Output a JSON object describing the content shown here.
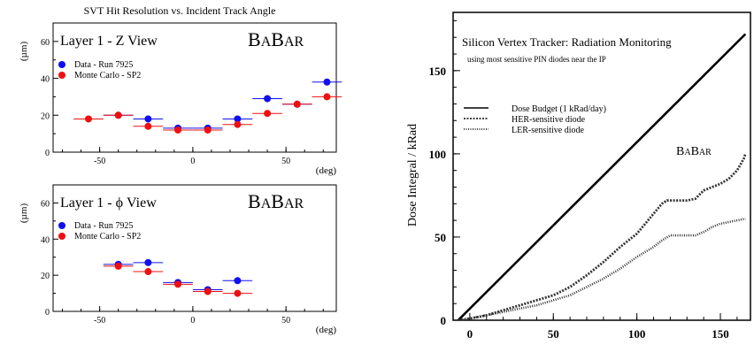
{
  "left_header": "SVT Hit Resolution vs. Incident Track Angle",
  "chart_data": [
    {
      "type": "scatter",
      "panel_title": "Layer 1 - Z View",
      "logo": "BABAR",
      "ylabel": "(µm)",
      "xlabel": "(deg)",
      "xlim": [
        -75,
        77
      ],
      "ylim": [
        0,
        70
      ],
      "x_ticks": [
        -50,
        0,
        50
      ],
      "y_ticks": [
        0,
        20,
        40,
        60
      ],
      "legend_placement": "top-left",
      "series": [
        {
          "name": "Data - Run 7925",
          "color": "#1010ee",
          "points": [
            {
              "x": -40,
              "y": 20,
              "xerr": 8
            },
            {
              "x": -24,
              "y": 18,
              "xerr": 8
            },
            {
              "x": -8,
              "y": 13,
              "xerr": 8
            },
            {
              "x": 8,
              "y": 13,
              "xerr": 8
            },
            {
              "x": 24,
              "y": 18,
              "xerr": 8
            },
            {
              "x": 40,
              "y": 29,
              "xerr": 8
            },
            {
              "x": 56,
              "y": 26,
              "xerr": 8
            },
            {
              "x": 72,
              "y": 38,
              "xerr": 8
            }
          ]
        },
        {
          "name": "Monte Carlo - SP2",
          "color": "#ee1010",
          "points": [
            {
              "x": -56,
              "y": 18,
              "xerr": 8
            },
            {
              "x": -40,
              "y": 20,
              "xerr": 8
            },
            {
              "x": -24,
              "y": 14,
              "xerr": 8
            },
            {
              "x": -8,
              "y": 12,
              "xerr": 8
            },
            {
              "x": 8,
              "y": 12,
              "xerr": 8
            },
            {
              "x": 24,
              "y": 15,
              "xerr": 8
            },
            {
              "x": 40,
              "y": 21,
              "xerr": 8
            },
            {
              "x": 56,
              "y": 26,
              "xerr": 8
            },
            {
              "x": 72,
              "y": 30,
              "xerr": 8
            }
          ]
        }
      ]
    },
    {
      "type": "scatter",
      "panel_title": "Layer 1 - ϕ View",
      "logo": "BABAR",
      "ylabel": "(µm)",
      "xlabel": "(deg)",
      "xlim": [
        -75,
        77
      ],
      "ylim": [
        0,
        70
      ],
      "x_ticks": [
        -50,
        0,
        50
      ],
      "y_ticks": [
        0,
        20,
        40,
        60
      ],
      "legend_placement": "top-left",
      "series": [
        {
          "name": "Data - Run 7925",
          "color": "#1010ee",
          "points": [
            {
              "x": -40,
              "y": 26,
              "xerr": 8
            },
            {
              "x": -24,
              "y": 27,
              "xerr": 8
            },
            {
              "x": -8,
              "y": 16,
              "xerr": 8
            },
            {
              "x": 8,
              "y": 12,
              "xerr": 8
            },
            {
              "x": 24,
              "y": 17,
              "xerr": 8
            }
          ]
        },
        {
          "name": "Monte Carlo - SP2",
          "color": "#ee1010",
          "points": [
            {
              "x": -40,
              "y": 25,
              "xerr": 8
            },
            {
              "x": -24,
              "y": 22,
              "xerr": 8
            },
            {
              "x": -8,
              "y": 15,
              "xerr": 8
            },
            {
              "x": 8,
              "y": 11,
              "xerr": 8
            },
            {
              "x": 24,
              "y": 10,
              "xerr": 8
            }
          ]
        }
      ]
    },
    {
      "type": "line",
      "title": "Silicon Vertex Tracker: Radiation Monitoring",
      "subtitle": "using most sensitive PIN diodes near the IP",
      "logo": "BABAR",
      "ylabel": "Dose Integral / kRad",
      "xlabel": "",
      "xlim": [
        -10,
        168
      ],
      "ylim": [
        0,
        185
      ],
      "x_ticks": [
        0,
        50,
        100,
        150
      ],
      "y_ticks": [
        0,
        50,
        100,
        150
      ],
      "legend_placement": "middle-left",
      "series": [
        {
          "name": "Dose Budget (1 kRad/day)",
          "style": "solid",
          "points": [
            [
              -7,
              0
            ],
            [
              165,
              172
            ]
          ]
        },
        {
          "name": "HER-sensitive diode",
          "style": "dashed",
          "points": [
            [
              -7,
              0
            ],
            [
              0,
              1
            ],
            [
              10,
              3
            ],
            [
              20,
              6
            ],
            [
              30,
              9
            ],
            [
              40,
              12
            ],
            [
              50,
              15
            ],
            [
              60,
              20
            ],
            [
              70,
              27
            ],
            [
              80,
              35
            ],
            [
              90,
              44
            ],
            [
              100,
              52
            ],
            [
              105,
              58
            ],
            [
              110,
              64
            ],
            [
              115,
              70
            ],
            [
              118,
              72
            ],
            [
              125,
              72
            ],
            [
              130,
              72
            ],
            [
              135,
              73
            ],
            [
              140,
              78
            ],
            [
              145,
              80
            ],
            [
              150,
              82
            ],
            [
              155,
              85
            ],
            [
              160,
              90
            ],
            [
              164,
              97
            ],
            [
              165,
              100
            ]
          ]
        },
        {
          "name": "LER-sensitive diode",
          "style": "dotted",
          "points": [
            [
              -7,
              0
            ],
            [
              0,
              1
            ],
            [
              10,
              3
            ],
            [
              20,
              5
            ],
            [
              30,
              7
            ],
            [
              40,
              9
            ],
            [
              50,
              12
            ],
            [
              60,
              15
            ],
            [
              70,
              20
            ],
            [
              80,
              25
            ],
            [
              90,
              31
            ],
            [
              100,
              38
            ],
            [
              110,
              44
            ],
            [
              115,
              48
            ],
            [
              120,
              51
            ],
            [
              125,
              51
            ],
            [
              130,
              51
            ],
            [
              135,
              51
            ],
            [
              140,
              53
            ],
            [
              145,
              56
            ],
            [
              150,
              58
            ],
            [
              155,
              59
            ],
            [
              160,
              60
            ],
            [
              165,
              61
            ]
          ]
        }
      ]
    }
  ]
}
